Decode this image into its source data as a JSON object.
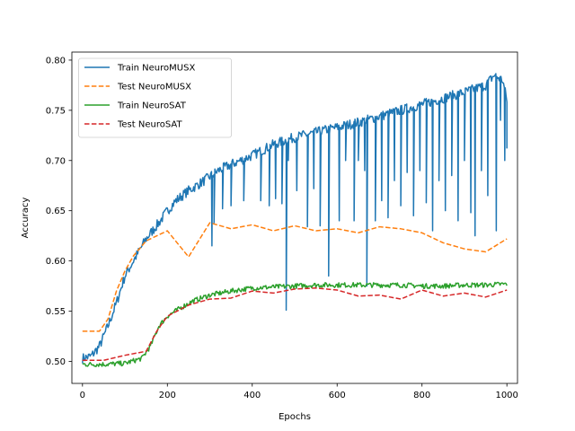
{
  "chart_data": {
    "type": "line",
    "title": "",
    "xlabel": "Epochs",
    "ylabel": "Accuracy",
    "xlim": [
      -25,
      1025
    ],
    "ylim": [
      0.478,
      0.808
    ],
    "xticks": [
      0,
      200,
      400,
      600,
      800,
      1000
    ],
    "yticks": [
      0.5,
      0.55,
      0.6,
      0.65,
      0.7,
      0.75,
      0.8
    ],
    "legend_position": "upper-left",
    "grid": false,
    "series": [
      {
        "name": "Train NeuroMUSX",
        "style": "solid",
        "color": "#1f77b4",
        "noisy": true,
        "noise": 0.005,
        "dips": [
          [
            305,
            0.615
          ],
          [
            310,
            0.638
          ],
          [
            330,
            0.652
          ],
          [
            350,
            0.655
          ],
          [
            380,
            0.66
          ],
          [
            420,
            0.66
          ],
          [
            440,
            0.655
          ],
          [
            455,
            0.662
          ],
          [
            470,
            0.657
          ],
          [
            480,
            0.551
          ],
          [
            485,
            0.7
          ],
          [
            505,
            0.67
          ],
          [
            530,
            0.634
          ],
          [
            545,
            0.672
          ],
          [
            560,
            0.635
          ],
          [
            580,
            0.585
          ],
          [
            605,
            0.64
          ],
          [
            620,
            0.7
          ],
          [
            640,
            0.64
          ],
          [
            650,
            0.7
          ],
          [
            665,
            0.69
          ],
          [
            670,
            0.575
          ],
          [
            690,
            0.64
          ],
          [
            705,
            0.66
          ],
          [
            720,
            0.643
          ],
          [
            735,
            0.68
          ],
          [
            750,
            0.655
          ],
          [
            765,
            0.688
          ],
          [
            780,
            0.645
          ],
          [
            795,
            0.69
          ],
          [
            810,
            0.658
          ],
          [
            825,
            0.63
          ],
          [
            840,
            0.68
          ],
          [
            855,
            0.65
          ],
          [
            870,
            0.685
          ],
          [
            885,
            0.64
          ],
          [
            900,
            0.7
          ],
          [
            915,
            0.648
          ],
          [
            925,
            0.625
          ],
          [
            940,
            0.69
          ],
          [
            955,
            0.665
          ],
          [
            975,
            0.63
          ],
          [
            985,
            0.74
          ],
          [
            995,
            0.7
          ],
          [
            1000,
            0.712
          ]
        ],
        "x": [
          0,
          20,
          40,
          60,
          80,
          100,
          120,
          150,
          180,
          200,
          220,
          250,
          280,
          300,
          320,
          350,
          400,
          450,
          500,
          550,
          600,
          650,
          700,
          750,
          800,
          850,
          900,
          950,
          970,
          990,
          1000
        ],
        "y": [
          0.503,
          0.505,
          0.515,
          0.535,
          0.558,
          0.585,
          0.6,
          0.622,
          0.638,
          0.65,
          0.66,
          0.67,
          0.678,
          0.684,
          0.69,
          0.696,
          0.705,
          0.716,
          0.723,
          0.728,
          0.733,
          0.738,
          0.744,
          0.75,
          0.756,
          0.762,
          0.768,
          0.775,
          0.785,
          0.78,
          0.76
        ]
      },
      {
        "name": "Test NeuroMUSX",
        "style": "dashed",
        "color": "#ff7f0e",
        "noisy": false,
        "x": [
          0,
          40,
          60,
          80,
          100,
          120,
          150,
          200,
          250,
          300,
          350,
          400,
          450,
          500,
          550,
          600,
          650,
          700,
          750,
          800,
          850,
          900,
          950,
          1000
        ],
        "y": [
          0.53,
          0.53,
          0.542,
          0.57,
          0.59,
          0.605,
          0.62,
          0.63,
          0.604,
          0.638,
          0.632,
          0.636,
          0.63,
          0.635,
          0.63,
          0.632,
          0.628,
          0.634,
          0.632,
          0.628,
          0.618,
          0.612,
          0.609,
          0.622
        ]
      },
      {
        "name": "Train NeuroSAT",
        "style": "solid",
        "color": "#2ca02c",
        "noisy": true,
        "noise": 0.0025,
        "dips": [],
        "x": [
          0,
          50,
          100,
          140,
          160,
          180,
          200,
          230,
          260,
          300,
          350,
          400,
          450,
          500,
          550,
          600,
          650,
          700,
          750,
          800,
          850,
          900,
          950,
          1000
        ],
        "y": [
          0.497,
          0.497,
          0.498,
          0.503,
          0.515,
          0.535,
          0.545,
          0.553,
          0.56,
          0.566,
          0.57,
          0.573,
          0.574,
          0.575,
          0.576,
          0.576,
          0.576,
          0.576,
          0.576,
          0.575,
          0.575,
          0.576,
          0.576,
          0.577
        ]
      },
      {
        "name": "Test NeuroSAT",
        "style": "dashed",
        "color": "#d62728",
        "noisy": false,
        "x": [
          0,
          50,
          100,
          150,
          175,
          200,
          250,
          300,
          350,
          400,
          450,
          500,
          550,
          600,
          650,
          700,
          750,
          800,
          850,
          900,
          950,
          1000
        ],
        "y": [
          0.501,
          0.501,
          0.506,
          0.51,
          0.53,
          0.545,
          0.556,
          0.562,
          0.563,
          0.57,
          0.568,
          0.572,
          0.573,
          0.571,
          0.565,
          0.566,
          0.562,
          0.571,
          0.565,
          0.568,
          0.564,
          0.571
        ]
      }
    ]
  }
}
